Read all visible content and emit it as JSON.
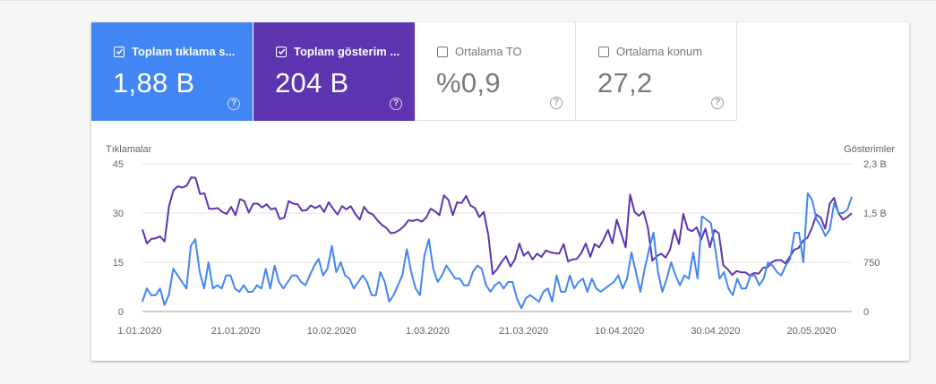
{
  "metrics": [
    {
      "label": "Toplam tıklama s...",
      "value": "1,88 B",
      "checked": true,
      "color": "#4285f4"
    },
    {
      "label": "Toplam gösterim ...",
      "value": "204 B",
      "checked": true,
      "color": "#5e35b1"
    },
    {
      "label": "Ortalama TO",
      "value": "%0,9",
      "checked": false
    },
    {
      "label": "Ortalama konum",
      "value": "27,2",
      "checked": false
    }
  ],
  "help_glyph": "?",
  "chart_data": {
    "type": "line",
    "left_axis_label": "Tıklamalar",
    "right_axis_label": "Gösterimler",
    "left_ticks": [
      "0",
      "15",
      "30",
      "45"
    ],
    "right_ticks": [
      "0",
      "750",
      "1,5 B",
      "2,3 B"
    ],
    "left_ylim": [
      0,
      45
    ],
    "right_ylim": [
      0,
      2.3
    ],
    "x_ticks": [
      "1.01.2020",
      "21.01.2020",
      "10.02.2020",
      "1.03.2020",
      "21.03.2020",
      "10.04.2020",
      "30.04.2020",
      "20.05.2020"
    ],
    "series": [
      {
        "name": "Tıklamalar",
        "axis": "left",
        "color": "#4285f4",
        "values": [
          3,
          7,
          5,
          5,
          7,
          2,
          5,
          13,
          11,
          9,
          7,
          20,
          22,
          12,
          7,
          15,
          7,
          8,
          7,
          11,
          11,
          7,
          6,
          8,
          6,
          6,
          8,
          7,
          13,
          7,
          14,
          9,
          7,
          9,
          11,
          11,
          9,
          8,
          11,
          14,
          16,
          11,
          13,
          20,
          12,
          15,
          11,
          10,
          7,
          9,
          11,
          9,
          5,
          5,
          12,
          9,
          3,
          5,
          8,
          11,
          19,
          12,
          7,
          5,
          17,
          22,
          13,
          9,
          11,
          14,
          12,
          10,
          10,
          8,
          8,
          12,
          14,
          13,
          8,
          6,
          8,
          9,
          7,
          9,
          9,
          4,
          1,
          4,
          5,
          4,
          3,
          6,
          7,
          3,
          11,
          6,
          6,
          11,
          7,
          9,
          10,
          6,
          10,
          7,
          6,
          7,
          8,
          9,
          11,
          7,
          10,
          18,
          12,
          6,
          13,
          19,
          24,
          12,
          6,
          10,
          15,
          11,
          8,
          11,
          10,
          18,
          10,
          29,
          28,
          27,
          19,
          10,
          12,
          7,
          5,
          10,
          7,
          7,
          11,
          11,
          8,
          10,
          15,
          14,
          12,
          11,
          14,
          16,
          24,
          24,
          15,
          36,
          34,
          28,
          26,
          23,
          25,
          33,
          30,
          30,
          31,
          35
        ]
      },
      {
        "name": "Gösterimler",
        "axis": "right",
        "color": "#5e35b1",
        "values": [
          1.28,
          1.06,
          1.13,
          1.14,
          1.17,
          1.09,
          1.64,
          1.89,
          1.95,
          1.93,
          1.96,
          2.09,
          2.08,
          1.83,
          1.84,
          1.6,
          1.6,
          1.61,
          1.55,
          1.52,
          1.63,
          1.5,
          1.75,
          1.72,
          1.54,
          1.68,
          1.68,
          1.62,
          1.67,
          1.59,
          1.61,
          1.44,
          1.46,
          1.72,
          1.68,
          1.67,
          1.57,
          1.58,
          1.65,
          1.61,
          1.65,
          1.55,
          1.7,
          1.6,
          1.51,
          1.64,
          1.59,
          1.64,
          1.52,
          1.43,
          1.63,
          1.54,
          1.51,
          1.42,
          1.35,
          1.3,
          1.22,
          1.23,
          1.27,
          1.33,
          1.42,
          1.41,
          1.43,
          1.4,
          1.46,
          1.6,
          1.56,
          1.5,
          1.81,
          1.74,
          1.5,
          1.7,
          1.69,
          1.8,
          1.65,
          1.61,
          1.47,
          1.55,
          1.2,
          0.58,
          0.66,
          0.77,
          0.86,
          0.7,
          0.81,
          1.06,
          0.87,
          0.93,
          0.81,
          0.9,
          0.85,
          0.95,
          0.92,
          0.91,
          0.9,
          1.05,
          0.78,
          0.81,
          0.82,
          0.91,
          1.06,
          0.85,
          1.05,
          1.0,
          1.12,
          1.27,
          1.06,
          1.43,
          1.21,
          1.0,
          1.82,
          1.55,
          1.49,
          1.56,
          1.31,
          0.79,
          0.86,
          0.9,
          0.84,
          0.96,
          1.27,
          1.05,
          1.52,
          1.28,
          1.25,
          1.31,
          1.12,
          1.29,
          1.0,
          1.27,
          1.22,
          0.72,
          0.66,
          0.57,
          0.63,
          0.61,
          0.61,
          0.56,
          0.6,
          0.59,
          0.68,
          0.69,
          0.77,
          0.8,
          0.8,
          0.75,
          0.85,
          0.96,
          0.99,
          1.1,
          1.15,
          1.3,
          1.51,
          1.46,
          1.29,
          1.68,
          1.77,
          1.53,
          1.43,
          1.47,
          1.53
        ]
      }
    ]
  }
}
